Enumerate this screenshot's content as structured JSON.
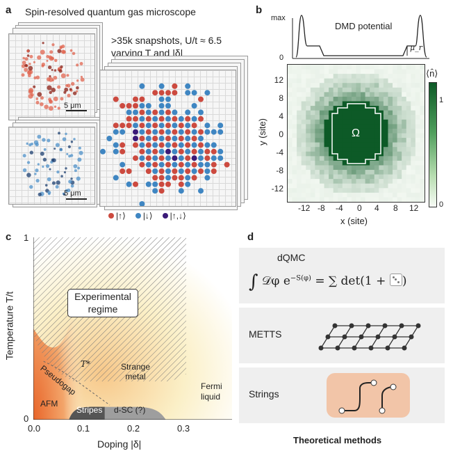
{
  "panel_a": {
    "letter": "a",
    "title": "Spin-resolved quantum gas microscope",
    "snapshots_line1": ">35k snapshots, U/t ≈ 6.5",
    "snapshots_line2": "varying T and |δ|",
    "scalebar": "5 μm",
    "legend": [
      {
        "label": "|↑⟩",
        "color": "#cc4a3f"
      },
      {
        "label": "|↓⟩",
        "color": "#3f86c2"
      },
      {
        "label": "|↑,↓⟩",
        "color": "#3b1a78"
      }
    ]
  },
  "panel_b": {
    "letter": "b",
    "potential_label": "DMD potential",
    "max_label": "max",
    "zero_label": "0",
    "mu_label": "μ_r",
    "region_label": "Ω",
    "colorbar_title": "⟨n̂⟩",
    "colorbar_ticks": [
      "1",
      "0"
    ],
    "y_ticks": [
      "12",
      "8",
      "4",
      "0",
      "-4",
      "-8",
      "-12"
    ],
    "x_ticks": [
      "-12",
      "-8",
      "-4",
      "0",
      "4",
      "8",
      "12"
    ],
    "y_label": "y (site)",
    "x_label": "x (site)"
  },
  "panel_c": {
    "letter": "c",
    "chart_data": {
      "type": "area",
      "xlabel": "Doping |δ|",
      "ylabel": "Temperature T/t",
      "xlim": [
        0,
        0.39
      ],
      "ylim": [
        0,
        1
      ],
      "x_ticks": [
        "0.0",
        "0.1",
        "0.2",
        "0.3"
      ],
      "y_ticks": [
        "0",
        "1"
      ],
      "experimental_region": {
        "x": [
          0,
          0.3
        ],
        "y": [
          0.25,
          1
        ]
      },
      "annotations": [
        "Experimental regime",
        "Pseudogap",
        "T*",
        "Strange metal",
        "AFM",
        "Stripes",
        "d-SC (?)",
        "Fermi liquid"
      ]
    },
    "regime_line1": "Experimental",
    "regime_line2": "regime",
    "pseudogap": "Pseudogap",
    "tstar": "T*",
    "strange1": "Strange",
    "strange2": "metal",
    "afm": "AFM",
    "stripes": "Stripes",
    "dsc": "d-SC (?)",
    "fermi1": "Fermi",
    "fermi2": "liquid"
  },
  "panel_d": {
    "letter": "d",
    "dqmc_label": "dQMC",
    "dqmc_formula": "∫ 𝒟φ e^{−S(φ)} = ∑ det(1 + ·)",
    "metts_label": "METTS",
    "strings_label": "Strings",
    "footer": "Theoretical methods"
  }
}
